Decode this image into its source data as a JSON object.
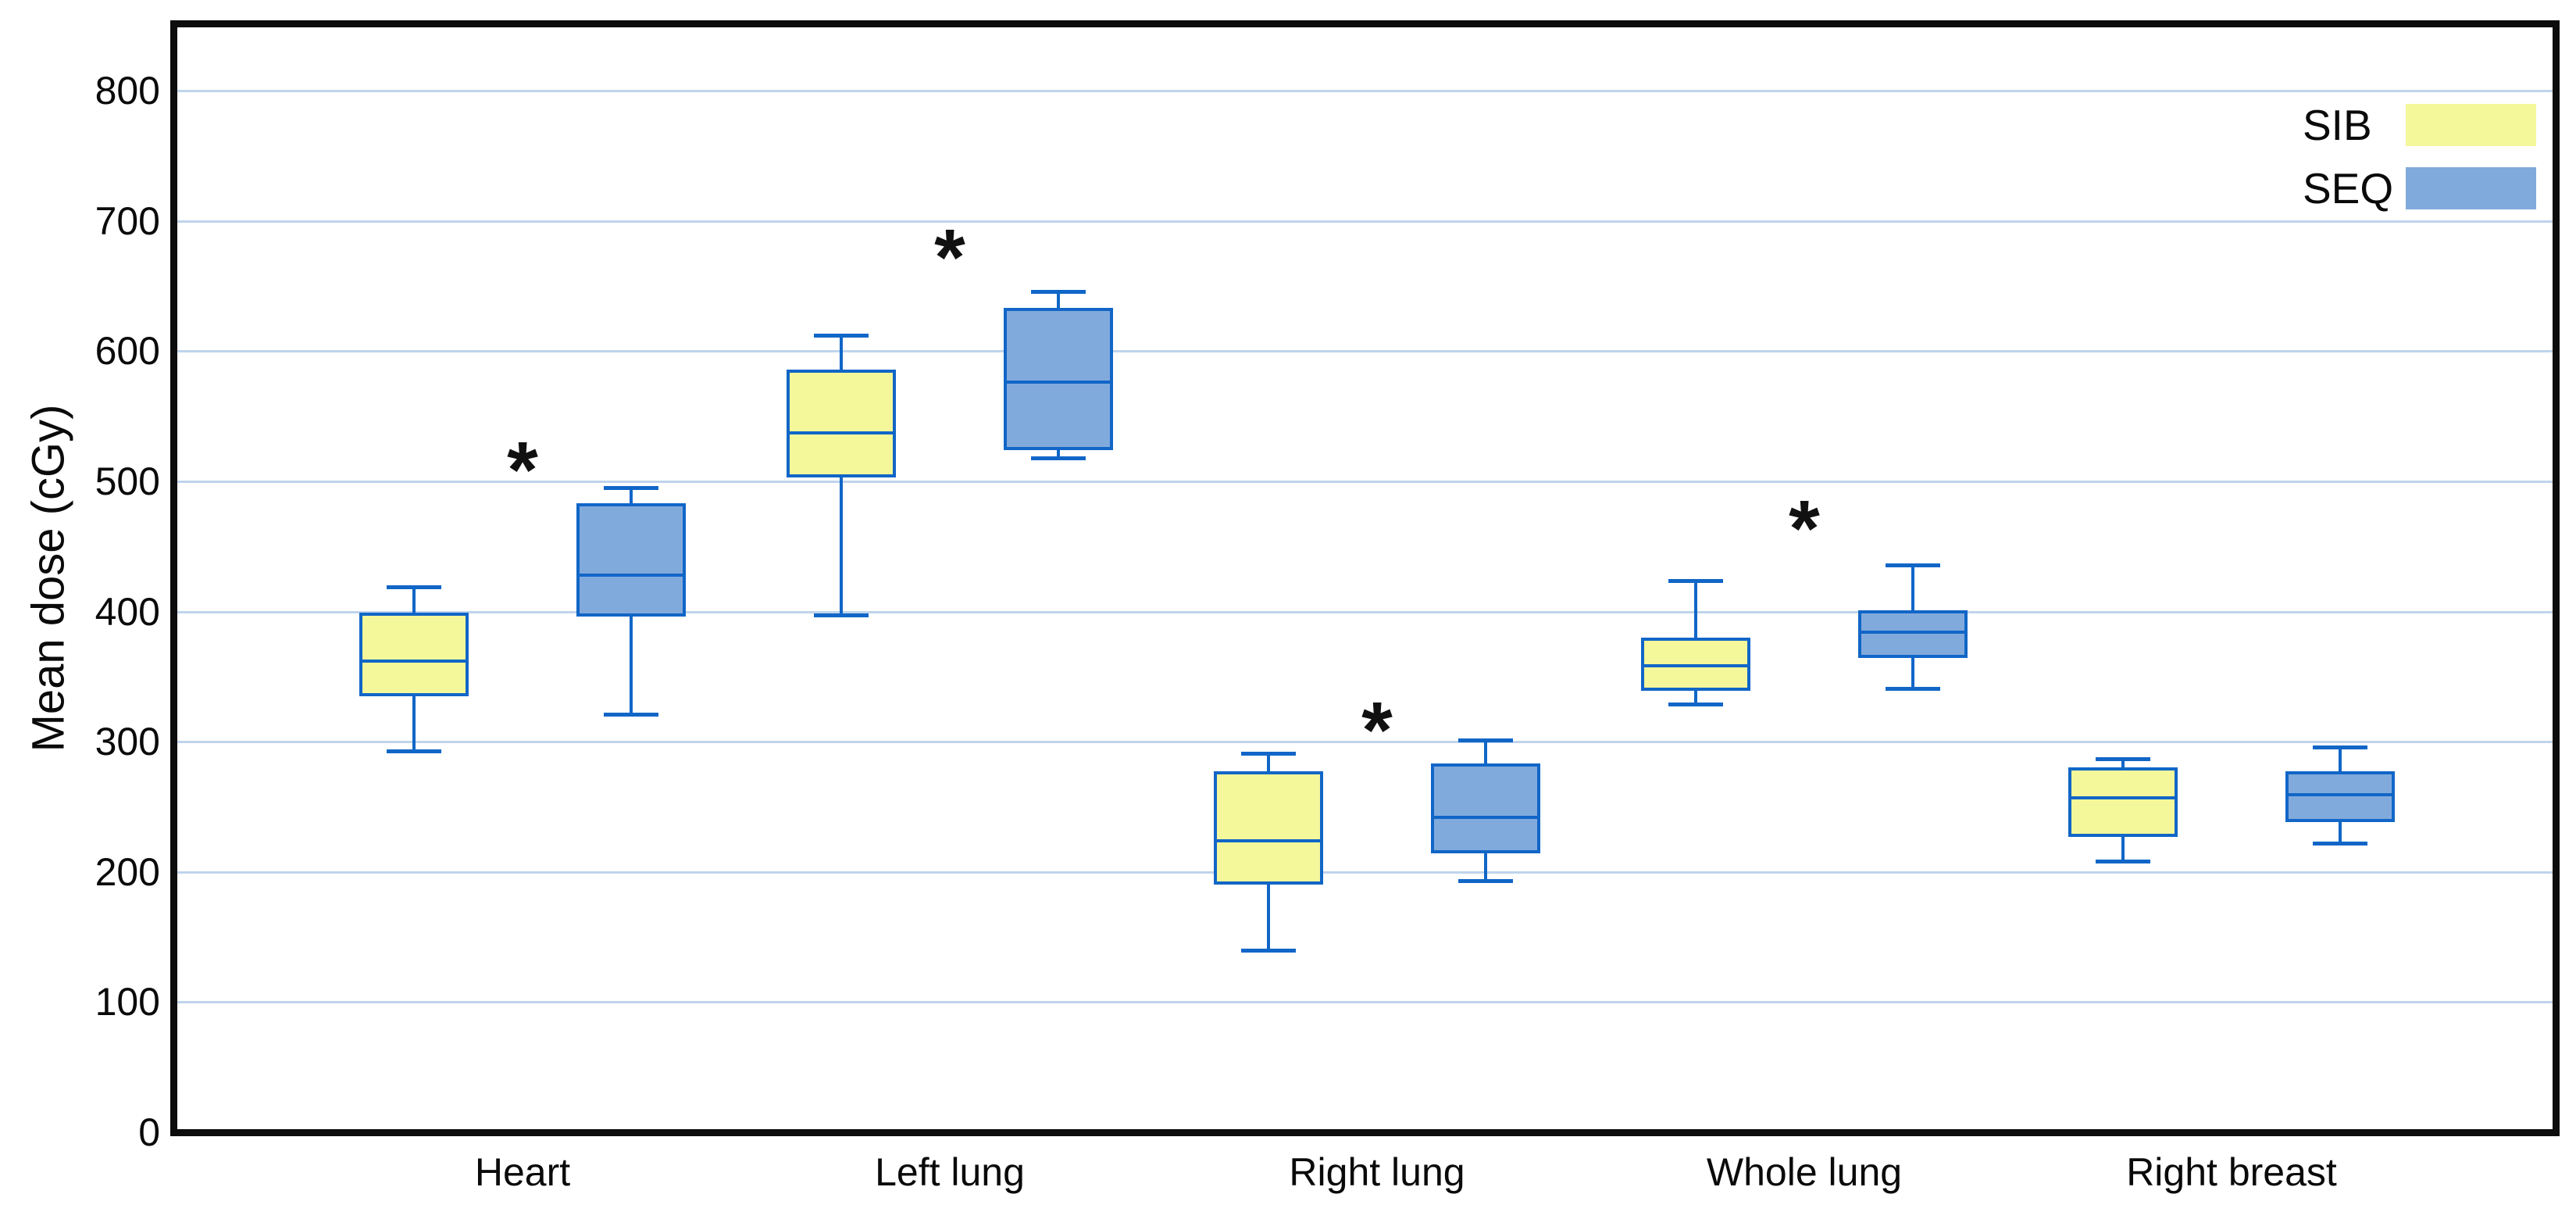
{
  "chart_data": {
    "type": "boxplot",
    "title": "",
    "ylabel": "Mean dose (cGy)",
    "xlabel": "",
    "ylim": [
      0,
      800
    ],
    "yticks": [
      0,
      100,
      200,
      300,
      400,
      500,
      600,
      700,
      800
    ],
    "grid": "horizontal",
    "legend_position": "top-right",
    "categories": [
      "Heart",
      "Left lung",
      "Right lung",
      "Whole lung",
      "Right breast"
    ],
    "series": [
      {
        "name": "SIB",
        "fill": "#f5f79b",
        "boxes": [
          {
            "category": "Heart",
            "min": 293,
            "q1": 335,
            "median": 362,
            "q3": 399,
            "max": 419
          },
          {
            "category": "Left lung",
            "min": 397,
            "q1": 503,
            "median": 537,
            "q3": 586,
            "max": 612
          },
          {
            "category": "Right lung",
            "min": 140,
            "q1": 190,
            "median": 224,
            "q3": 277,
            "max": 291
          },
          {
            "category": "Whole lung",
            "min": 329,
            "q1": 339,
            "median": 358,
            "q3": 380,
            "max": 424
          },
          {
            "category": "Right breast",
            "min": 208,
            "q1": 227,
            "median": 257,
            "q3": 280,
            "max": 287
          }
        ]
      },
      {
        "name": "SEQ",
        "fill": "#81aadc",
        "boxes": [
          {
            "category": "Heart",
            "min": 321,
            "q1": 396,
            "median": 428,
            "q3": 483,
            "max": 495
          },
          {
            "category": "Left lung",
            "min": 518,
            "q1": 524,
            "median": 576,
            "q3": 633,
            "max": 646
          },
          {
            "category": "Right lung",
            "min": 193,
            "q1": 214,
            "median": 242,
            "q3": 283,
            "max": 301
          },
          {
            "category": "Whole lung",
            "min": 341,
            "q1": 364,
            "median": 384,
            "q3": 401,
            "max": 436
          },
          {
            "category": "Right breast",
            "min": 222,
            "q1": 238,
            "median": 259,
            "q3": 277,
            "max": 296
          }
        ]
      }
    ],
    "significance_markers": [
      {
        "category": "Heart",
        "symbol": "*",
        "value": 520
      },
      {
        "category": "Left lung",
        "symbol": "*",
        "value": 683
      },
      {
        "category": "Right lung",
        "symbol": "*",
        "value": 320
      },
      {
        "category": "Whole lung",
        "symbol": "*",
        "value": 475
      }
    ],
    "colors": {
      "box_border": "#1166c7",
      "gridline": "#bfd4ec",
      "plot_border": "#0c0c0c",
      "marker": "#111111",
      "sib_fill": "#f5f79b",
      "seq_fill": "#81aadc"
    }
  }
}
